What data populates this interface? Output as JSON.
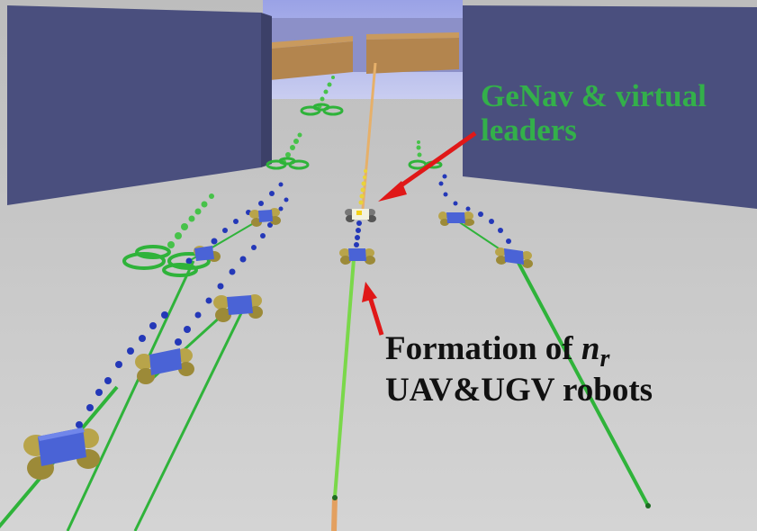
{
  "annotations": {
    "genav_line1": "GeNav & virtual",
    "genav_line2": "leaders",
    "formation_line1": "Formation of ",
    "formation_var": "n",
    "formation_sub": "r",
    "formation_line2": "UAV&UGV robots"
  },
  "colors": {
    "genav_text": "#33b04a",
    "formation_text": "#111111",
    "arrow": "#e01818",
    "path_green": "#2fb33a",
    "waypoint_blue": "#2438b8",
    "uav_green": "#2fb33a",
    "ugv_body": "#4a63d6",
    "ugv_wheel": "#b8a44a",
    "building": "#4a4f7e",
    "floor": "#c9c9c9"
  }
}
